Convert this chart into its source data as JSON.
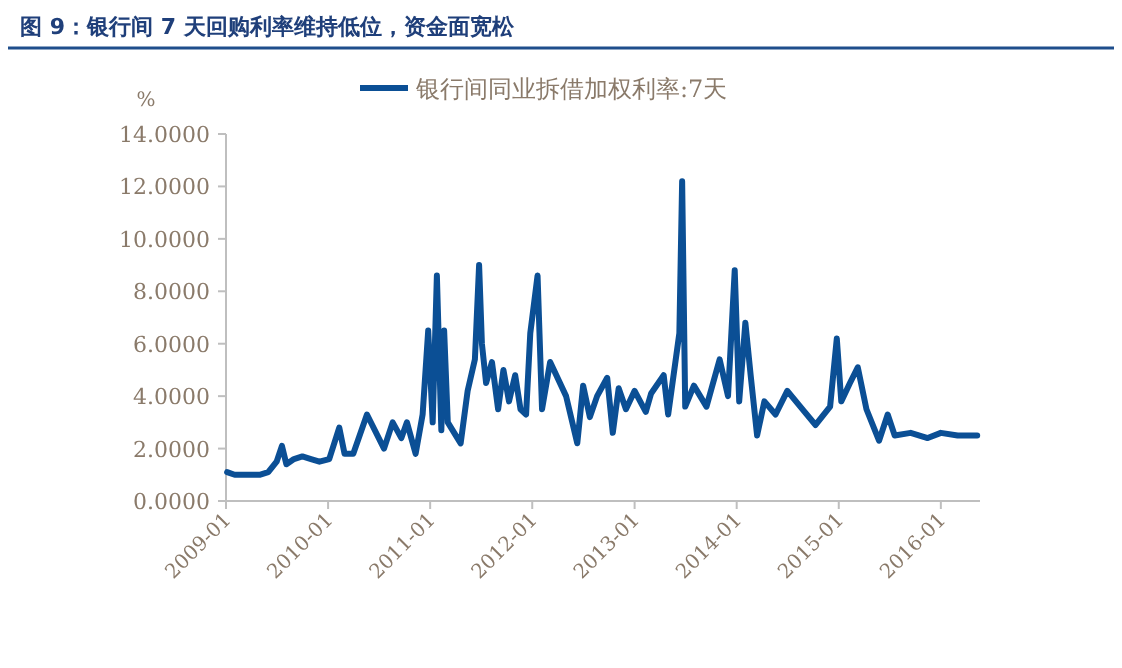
{
  "chart_data": {
    "type": "line",
    "title": "图 9：银行间 7 天回购利率维持低位，资金面宽松",
    "ylabel": "%",
    "legend": "top",
    "grid": false,
    "marker": "none",
    "line_style": "solid",
    "xlim": [
      "2009-01-01",
      "2016-05-20"
    ],
    "xticks": [
      "2009-01",
      "2010-01",
      "2011-01",
      "2012-01",
      "2013-01",
      "2014-01",
      "2015-01",
      "2016-01"
    ],
    "ylim": [
      0,
      14
    ],
    "yticks": [
      {
        "value": 0,
        "label": "0.0000"
      },
      {
        "value": 2,
        "label": "2.0000"
      },
      {
        "value": 4,
        "label": "4.0000"
      },
      {
        "value": 6,
        "label": "6.0000"
      },
      {
        "value": 8,
        "label": "8.0000"
      },
      {
        "value": 10,
        "label": "10.0000"
      },
      {
        "value": 12,
        "label": "12.0000"
      },
      {
        "value": 14,
        "label": "14.0000"
      }
    ],
    "series": [
      {
        "name": "银行间同业拆借加权利率:7天",
        "color": "#0b4f95",
        "x": [
          "2009-01-05",
          "2009-02-01",
          "2009-03-01",
          "2009-04-01",
          "2009-05-01",
          "2009-06-01",
          "2009-07-01",
          "2009-07-20",
          "2009-08-05",
          "2009-09-01",
          "2009-10-01",
          "2009-11-01",
          "2009-12-01",
          "2010-01-05",
          "2010-02-10",
          "2010-03-01",
          "2010-04-01",
          "2010-05-20",
          "2010-07-20",
          "2010-08-20",
          "2010-09-20",
          "2010-10-10",
          "2010-11-10",
          "2010-12-05",
          "2010-12-25",
          "2011-01-10",
          "2011-01-25",
          "2011-02-10",
          "2011-02-20",
          "2011-03-05",
          "2011-04-20",
          "2011-05-15",
          "2011-06-10",
          "2011-06-25",
          "2011-07-05",
          "2011-07-20",
          "2011-08-10",
          "2011-09-01",
          "2011-09-20",
          "2011-10-10",
          "2011-11-01",
          "2011-11-20",
          "2011-12-10",
          "2011-12-25",
          "2012-01-20",
          "2012-02-05",
          "2012-03-05",
          "2012-05-01",
          "2012-06-10",
          "2012-07-01",
          "2012-07-25",
          "2012-08-20",
          "2012-09-25",
          "2012-10-15",
          "2012-11-05",
          "2012-12-01",
          "2013-01-01",
          "2013-02-10",
          "2013-03-01",
          "2013-04-15",
          "2013-05-01",
          "2013-06-10",
          "2013-06-20",
          "2013-07-01",
          "2013-08-01",
          "2013-09-15",
          "2013-11-01",
          "2013-12-01",
          "2013-12-25",
          "2014-01-10",
          "2014-02-01",
          "2014-02-20",
          "2014-03-15",
          "2014-04-10",
          "2014-05-20",
          "2014-07-01",
          "2014-09-01",
          "2014-10-10",
          "2014-12-01",
          "2014-12-25",
          "2015-01-10",
          "2015-02-10",
          "2015-03-10",
          "2015-04-10",
          "2015-05-25",
          "2015-06-25",
          "2015-07-20",
          "2015-09-15",
          "2015-11-15",
          "2016-01-01",
          "2016-03-01",
          "2016-05-10"
        ],
        "values": [
          1.1,
          1.0,
          1.0,
          1.0,
          1.0,
          1.1,
          1.5,
          2.1,
          1.4,
          1.6,
          1.7,
          1.6,
          1.5,
          1.6,
          2.8,
          1.8,
          1.8,
          3.3,
          2.0,
          3.0,
          2.4,
          3.0,
          1.8,
          3.3,
          6.5,
          3.0,
          8.6,
          2.7,
          6.5,
          3.0,
          2.2,
          4.2,
          5.4,
          9.0,
          6.0,
          4.5,
          5.3,
          3.5,
          5.0,
          3.8,
          4.8,
          3.5,
          3.3,
          6.4,
          8.6,
          3.5,
          5.3,
          4.0,
          2.2,
          4.4,
          3.2,
          4.0,
          4.7,
          2.6,
          4.3,
          3.5,
          4.2,
          3.4,
          4.1,
          4.8,
          3.3,
          6.4,
          12.2,
          3.6,
          4.4,
          3.6,
          5.4,
          4.0,
          8.8,
          3.8,
          6.8,
          4.8,
          2.5,
          3.8,
          3.3,
          4.2,
          3.4,
          2.9,
          3.6,
          6.2,
          3.8,
          4.5,
          5.1,
          3.5,
          2.3,
          3.3,
          2.5,
          2.6,
          2.4,
          2.6,
          2.5,
          2.5
        ]
      }
    ]
  }
}
